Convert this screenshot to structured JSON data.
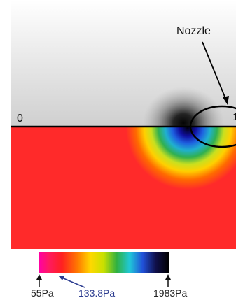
{
  "labels": {
    "nozzle": "Nozzle",
    "origin": "0",
    "nozzle_tip": "1"
  },
  "colorbar": {
    "min_label": "55Pa",
    "mid_label": "133.8Pa",
    "max_label": "1983Pa",
    "mid_label_color": "#2b3b8f",
    "stops": [
      "#ff00a8",
      "#ff2a3a",
      "#ff6a00",
      "#ffd400",
      "#cde000",
      "#30b040",
      "#20c8d8",
      "#2050d8",
      "#10104a",
      "#000000"
    ]
  },
  "colors": {
    "pressure_background": "#ff2020",
    "photo_background": "#d6d6d6"
  }
}
